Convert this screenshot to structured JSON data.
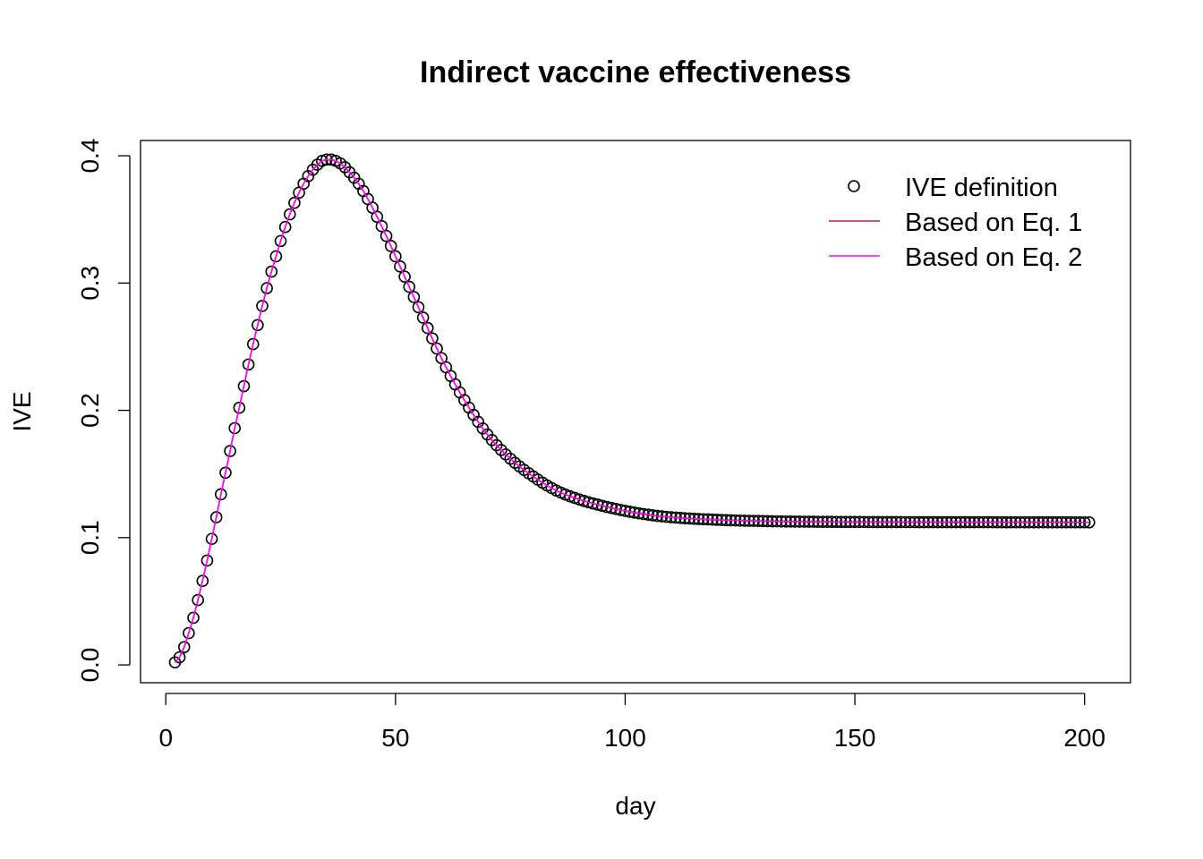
{
  "chart_data": {
    "type": "scatter",
    "title": "Indirect vaccine effectiveness",
    "xlabel": "day",
    "ylabel": "IVE",
    "xlim": [
      -5.5,
      210
    ],
    "ylim": [
      -0.014,
      0.412
    ],
    "xticks": [
      0,
      50,
      100,
      150,
      200
    ],
    "yticks": [
      0.0,
      0.1,
      0.2,
      0.3,
      0.4
    ],
    "xtick_labels": [
      "0",
      "50",
      "100",
      "150",
      "200"
    ],
    "ytick_labels": [
      "0.0",
      "0.1",
      "0.2",
      "0.3",
      "0.4"
    ],
    "grid": false,
    "legend_position": "top-right",
    "x_start": 2,
    "x_end": 201,
    "anchor_points": [
      [
        2,
        0.002
      ],
      [
        3,
        0.006
      ],
      [
        4,
        0.014
      ],
      [
        5,
        0.025
      ],
      [
        6,
        0.037
      ],
      [
        7,
        0.051
      ],
      [
        8,
        0.066
      ],
      [
        9,
        0.082
      ],
      [
        10,
        0.099
      ],
      [
        11,
        0.116
      ],
      [
        12,
        0.134
      ],
      [
        13,
        0.151
      ],
      [
        14,
        0.168
      ],
      [
        15,
        0.186
      ],
      [
        16,
        0.202
      ],
      [
        17,
        0.219
      ],
      [
        18,
        0.236
      ],
      [
        19,
        0.252
      ],
      [
        20,
        0.267
      ],
      [
        21,
        0.282
      ],
      [
        22,
        0.296
      ],
      [
        23,
        0.309
      ],
      [
        24,
        0.321
      ],
      [
        25,
        0.333
      ],
      [
        26,
        0.344
      ],
      [
        27,
        0.354
      ],
      [
        28,
        0.363
      ],
      [
        29,
        0.371
      ],
      [
        30,
        0.378
      ],
      [
        31,
        0.384
      ],
      [
        32,
        0.389
      ],
      [
        33,
        0.393
      ],
      [
        34,
        0.396
      ],
      [
        35,
        0.397
      ],
      [
        36,
        0.397
      ],
      [
        37,
        0.396
      ],
      [
        38,
        0.394
      ],
      [
        39,
        0.391
      ],
      [
        40,
        0.387
      ],
      [
        42,
        0.378
      ],
      [
        44,
        0.366
      ],
      [
        46,
        0.352
      ],
      [
        48,
        0.337
      ],
      [
        50,
        0.321
      ],
      [
        52,
        0.305
      ],
      [
        55,
        0.281
      ],
      [
        60,
        0.241
      ],
      [
        65,
        0.208
      ],
      [
        70,
        0.181
      ],
      [
        75,
        0.162
      ],
      [
        80,
        0.148
      ],
      [
        85,
        0.137
      ],
      [
        90,
        0.13
      ],
      [
        95,
        0.125
      ],
      [
        100,
        0.121
      ],
      [
        105,
        0.118
      ],
      [
        110,
        0.116
      ],
      [
        120,
        0.114
      ],
      [
        130,
        0.113
      ],
      [
        140,
        0.1125
      ],
      [
        160,
        0.1122
      ],
      [
        180,
        0.1121
      ],
      [
        201,
        0.112
      ]
    ],
    "series": [
      {
        "name": "IVE definition",
        "type": "points",
        "color": "#000000"
      },
      {
        "name": "Based on Eq. 1",
        "type": "line",
        "color": "#B22222"
      },
      {
        "name": "Based on Eq. 2",
        "type": "line",
        "color": "#FF00FF"
      }
    ]
  }
}
